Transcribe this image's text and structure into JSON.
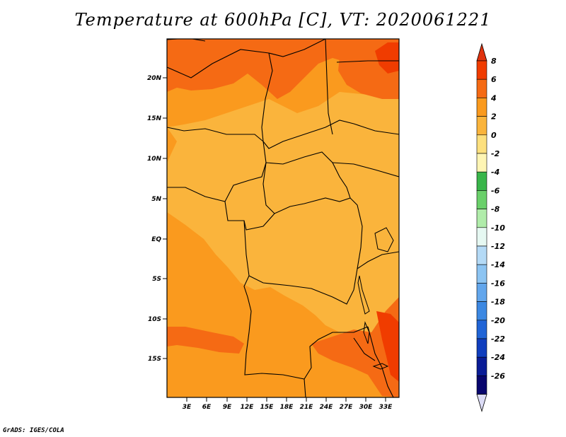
{
  "title": "Temperature at 600hPa [C], VT: 2020061221",
  "credit": "GrADS: IGES/COLA",
  "map": {
    "lat_ticks": [
      "20N",
      "15N",
      "10N",
      "5N",
      "EQ",
      "5S",
      "10S",
      "15S"
    ],
    "lon_ticks": [
      "3E",
      "6E",
      "9E",
      "12E",
      "15E",
      "18E",
      "21E",
      "24E",
      "27E",
      "30E",
      "33E"
    ]
  },
  "colorbar": {
    "labels": [
      "8",
      "6",
      "4",
      "2",
      "0",
      "-2",
      "-4",
      "-6",
      "-8",
      "-10",
      "-12",
      "-14",
      "-16",
      "-18",
      "-20",
      "-22",
      "-24",
      "-26"
    ],
    "colors": [
      "#f03c00",
      "#f56a14",
      "#fa9a1e",
      "#fab43c",
      "#fde07e",
      "#fef5b4",
      "#39b54a",
      "#6ad06a",
      "#b0ecaa",
      "#e6f8f2",
      "#b4daf6",
      "#8cc4f2",
      "#62a6ec",
      "#3c88e2",
      "#2064d6",
      "#103ebe",
      "#0a1c96",
      "#08066e"
    ],
    "top_color": "#e0320e",
    "bottom_color": "#dcdcf6"
  }
}
